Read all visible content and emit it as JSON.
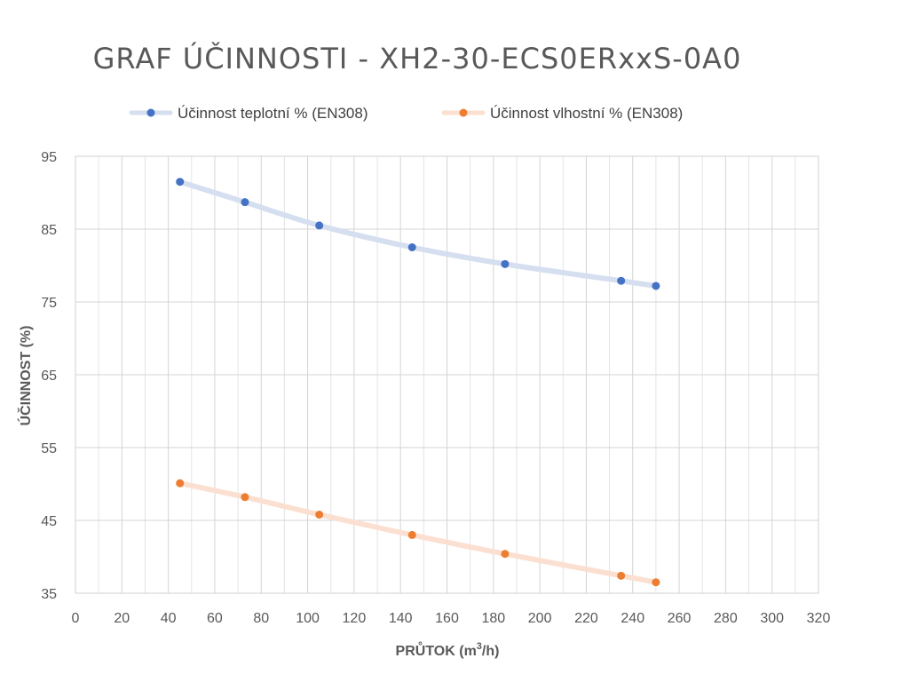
{
  "chart_data": {
    "type": "line",
    "title": "GRAF ÚČINNOSTI - XH2-30-ECS0ERxxS-0A0",
    "xlabel": "PRŮTOK (m³/h)",
    "xlabel_main": "PRŮTOK (m",
    "xlabel_sup": "3",
    "xlabel_end": "/h)",
    "ylabel": "ÚČINNOST (%)",
    "xlim": [
      0,
      320
    ],
    "ylim": [
      35,
      95
    ],
    "xticks": [
      0,
      20,
      40,
      60,
      80,
      100,
      120,
      140,
      160,
      180,
      200,
      220,
      240,
      260,
      280,
      300,
      320
    ],
    "yticks": [
      35,
      45,
      55,
      65,
      75,
      85,
      95
    ],
    "x_minor_step": 10,
    "grid": true,
    "legend_position": "top",
    "series": [
      {
        "name": "Účinnost teplotní % (EN308)",
        "line_color": "#d6dff0",
        "marker_color": "#4472c4",
        "x": [
          45,
          73,
          105,
          145,
          185,
          235,
          250
        ],
        "y": [
          91.5,
          88.7,
          85.5,
          82.5,
          80.2,
          77.9,
          77.2
        ]
      },
      {
        "name": "Účinnost vlhostní % (EN308)",
        "line_color": "#fbe0d2",
        "marker_color": "#ed7d31",
        "x": [
          45,
          73,
          105,
          145,
          185,
          235,
          250
        ],
        "y": [
          50.1,
          48.2,
          45.8,
          43.0,
          40.4,
          37.4,
          36.5
        ]
      }
    ]
  }
}
